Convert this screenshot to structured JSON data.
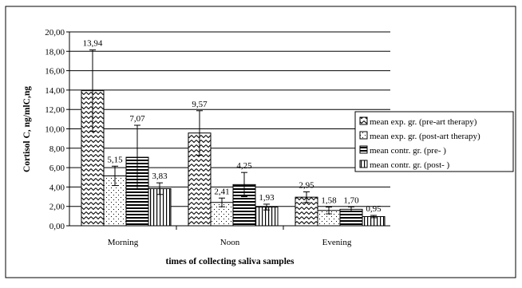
{
  "chart_data": {
    "type": "bar",
    "title": "",
    "xlabel": "times of collecting saliva samples",
    "ylabel": "Cortisol C, ng/mlC,ng",
    "ylim": [
      0,
      20
    ],
    "y_tick_step": 2,
    "y_tick_labels": [
      "0,00",
      "2,00",
      "4,00",
      "6,00",
      "8,00",
      "10,00",
      "12,00",
      "14,00",
      "16,00",
      "18,00",
      "20,00"
    ],
    "grid": true,
    "legend_position": "right",
    "categories": [
      "Morning",
      "Noon",
      "Evening"
    ],
    "series": [
      {
        "name": "mean exp. gr. (pre-art therapy)",
        "pattern": "wave",
        "values": [
          13.94,
          9.57,
          2.95
        ],
        "labels": [
          "13,94",
          "9,57",
          "2,95"
        ],
        "error": [
          4.2,
          2.3,
          0.55
        ]
      },
      {
        "name": "mean exp. gr. (post-art therapy)",
        "pattern": "dots",
        "values": [
          5.15,
          2.41,
          1.58
        ],
        "labels": [
          "5,15",
          "2,41",
          "1,58"
        ],
        "error": [
          1.0,
          0.45,
          0.35
        ]
      },
      {
        "name": "mean contr. gr. (pre- )",
        "pattern": "hlines",
        "values": [
          7.07,
          4.25,
          1.7
        ],
        "labels": [
          "7,07",
          "4,25",
          "1,70"
        ],
        "error": [
          3.3,
          1.25,
          0.25
        ]
      },
      {
        "name": "mean contr. gr. (post- )",
        "pattern": "vlines",
        "values": [
          3.83,
          1.93,
          0.95
        ],
        "labels": [
          "3,83",
          "1,93",
          "0,95"
        ],
        "error": [
          0.6,
          0.3,
          0.12
        ]
      }
    ]
  }
}
